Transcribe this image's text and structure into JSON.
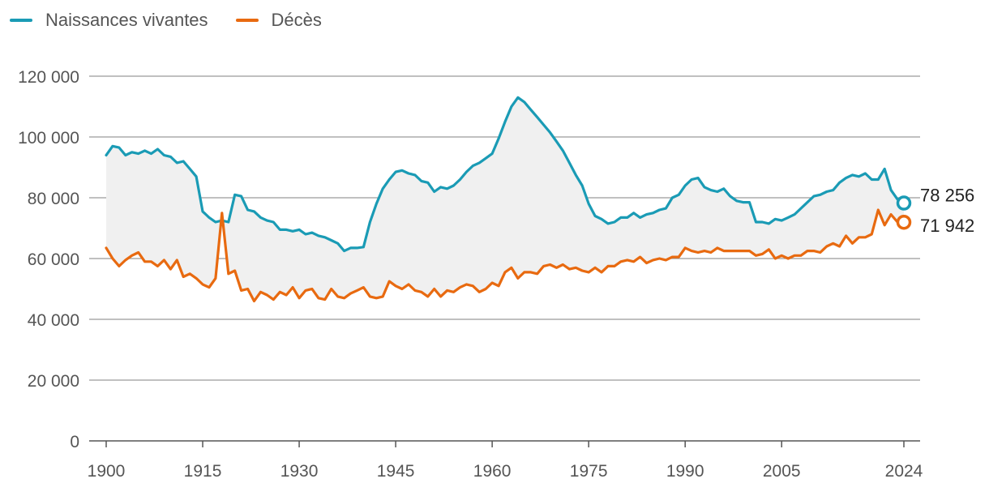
{
  "chart_data": {
    "type": "line",
    "title": "",
    "xlabel": "",
    "ylabel": "",
    "xlim": [
      1900,
      2024
    ],
    "ylim": [
      0,
      120000
    ],
    "x_ticks": [
      1900,
      1915,
      1930,
      1945,
      1960,
      1975,
      1990,
      2005,
      2024
    ],
    "x_tick_labels": [
      "1900",
      "1915",
      "1930",
      "1945",
      "1960",
      "1975",
      "1990",
      "2005",
      "2024"
    ],
    "y_ticks": [
      0,
      20000,
      40000,
      60000,
      80000,
      100000,
      120000
    ],
    "y_tick_labels": [
      "0",
      "20 000",
      "40 000",
      "60 000",
      "80 000",
      "100 000",
      "120 000"
    ],
    "legend": "top-left",
    "shaded_between_series": true,
    "series": [
      {
        "name": "Naissances vivantes",
        "color": "#1a9bb5",
        "end_label": "78 256",
        "x": [
          1900,
          1901,
          1902,
          1903,
          1904,
          1905,
          1906,
          1907,
          1908,
          1909,
          1910,
          1911,
          1912,
          1913,
          1914,
          1915,
          1916,
          1917,
          1918,
          1919,
          1920,
          1921,
          1922,
          1923,
          1924,
          1925,
          1926,
          1927,
          1928,
          1929,
          1930,
          1931,
          1932,
          1933,
          1934,
          1935,
          1936,
          1937,
          1938,
          1939,
          1940,
          1941,
          1942,
          1943,
          1944,
          1945,
          1946,
          1947,
          1948,
          1949,
          1950,
          1951,
          1952,
          1953,
          1954,
          1955,
          1956,
          1957,
          1958,
          1959,
          1960,
          1961,
          1962,
          1963,
          1964,
          1965,
          1966,
          1967,
          1968,
          1969,
          1970,
          1971,
          1972,
          1973,
          1974,
          1975,
          1976,
          1977,
          1978,
          1979,
          1980,
          1981,
          1982,
          1983,
          1984,
          1985,
          1986,
          1987,
          1988,
          1989,
          1990,
          1991,
          1992,
          1993,
          1994,
          1995,
          1996,
          1997,
          1998,
          1999,
          2000,
          2001,
          2002,
          2003,
          2004,
          2005,
          2006,
          2007,
          2008,
          2009,
          2010,
          2011,
          2012,
          2013,
          2014,
          2015,
          2016,
          2017,
          2018,
          2019,
          2020,
          2021,
          2022,
          2023,
          2024
        ],
        "values": [
          94000,
          97000,
          96500,
          94000,
          95000,
          94500,
          95500,
          94500,
          96000,
          94000,
          93500,
          91500,
          92000,
          89500,
          87000,
          75500,
          73500,
          72000,
          72500,
          72000,
          81000,
          80500,
          76000,
          75500,
          73500,
          72500,
          72000,
          69500,
          69500,
          69000,
          69500,
          68000,
          68500,
          67500,
          67000,
          66000,
          65000,
          62500,
          63500,
          63500,
          63800,
          72000,
          78000,
          83000,
          86000,
          88500,
          89000,
          88000,
          87500,
          85500,
          85000,
          82000,
          83500,
          83000,
          84000,
          86000,
          88500,
          90500,
          91500,
          93000,
          94500,
          99500,
          105000,
          110000,
          113000,
          111500,
          109000,
          106500,
          104000,
          101500,
          98500,
          95500,
          91500,
          87500,
          84000,
          78000,
          74000,
          73000,
          71500,
          72000,
          73500,
          73500,
          75000,
          73500,
          74500,
          75000,
          76000,
          76500,
          80000,
          81000,
          84000,
          86000,
          86500,
          83500,
          82500,
          82000,
          83000,
          80500,
          79000,
          78500,
          78500,
          72000,
          72000,
          71500,
          73000,
          72500,
          73500,
          74500,
          76500,
          78500,
          80500,
          81000,
          82000,
          82500,
          85000,
          86500,
          87500,
          87000,
          88000,
          86000,
          86000,
          89500,
          82500,
          79500,
          78256
        ]
      },
      {
        "name": "Décès",
        "color": "#e86a10",
        "end_label": "71 942",
        "x": [
          1900,
          1901,
          1902,
          1903,
          1904,
          1905,
          1906,
          1907,
          1908,
          1909,
          1910,
          1911,
          1912,
          1913,
          1914,
          1915,
          1916,
          1917,
          1918,
          1919,
          1920,
          1921,
          1922,
          1923,
          1924,
          1925,
          1926,
          1927,
          1928,
          1929,
          1930,
          1931,
          1932,
          1933,
          1934,
          1935,
          1936,
          1937,
          1938,
          1939,
          1940,
          1941,
          1942,
          1943,
          1944,
          1945,
          1946,
          1947,
          1948,
          1949,
          1950,
          1951,
          1952,
          1953,
          1954,
          1955,
          1956,
          1957,
          1958,
          1959,
          1960,
          1961,
          1962,
          1963,
          1964,
          1965,
          1966,
          1967,
          1968,
          1969,
          1970,
          1971,
          1972,
          1973,
          1974,
          1975,
          1976,
          1977,
          1978,
          1979,
          1980,
          1981,
          1982,
          1983,
          1984,
          1985,
          1986,
          1987,
          1988,
          1989,
          1990,
          1991,
          1992,
          1993,
          1994,
          1995,
          1996,
          1997,
          1998,
          1999,
          2000,
          2001,
          2002,
          2003,
          2004,
          2005,
          2006,
          2007,
          2008,
          2009,
          2010,
          2011,
          2012,
          2013,
          2014,
          2015,
          2016,
          2017,
          2018,
          2019,
          2020,
          2021,
          2022,
          2023,
          2024
        ],
        "values": [
          63500,
          60000,
          57500,
          59500,
          61000,
          62000,
          59000,
          59000,
          57500,
          59500,
          56500,
          59500,
          54000,
          55000,
          53500,
          51500,
          50500,
          53500,
          75000,
          55000,
          56000,
          49500,
          50000,
          46000,
          49000,
          48000,
          46500,
          49000,
          48000,
          50500,
          47000,
          49500,
          50000,
          47000,
          46500,
          50000,
          47500,
          47000,
          48500,
          49500,
          50500,
          47500,
          47000,
          47500,
          52500,
          51000,
          50000,
          51500,
          49500,
          49000,
          47500,
          50000,
          47500,
          49500,
          49000,
          50500,
          51500,
          51000,
          49000,
          50000,
          52000,
          51000,
          55500,
          57000,
          53500,
          55500,
          55500,
          55000,
          57500,
          58000,
          57000,
          58000,
          56500,
          57000,
          56000,
          55500,
          57000,
          55500,
          57500,
          57500,
          59000,
          59500,
          59000,
          60500,
          58500,
          59500,
          60000,
          59500,
          60500,
          60500,
          63500,
          62500,
          62000,
          62500,
          62000,
          63500,
          62500,
          62500,
          62500,
          62500,
          62500,
          61000,
          61500,
          63000,
          60000,
          61000,
          60000,
          61000,
          61000,
          62500,
          62500,
          62000,
          64000,
          65000,
          64000,
          67500,
          65000,
          67000,
          67000,
          68000,
          76000,
          71000,
          74500,
          72000,
          71942
        ]
      }
    ]
  }
}
